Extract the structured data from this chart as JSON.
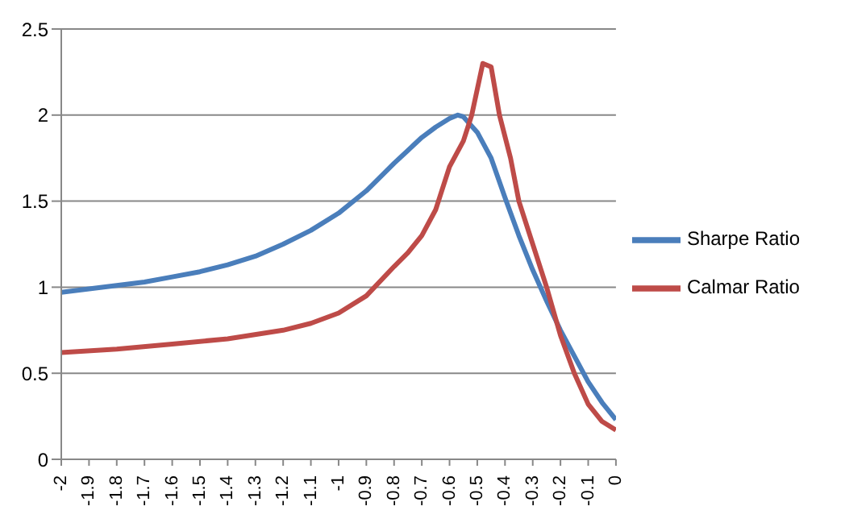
{
  "chart_data": {
    "type": "line",
    "xlim": [
      -2,
      0
    ],
    "xticks": [
      -2,
      -1.9,
      -1.8,
      -1.7,
      -1.6,
      -1.5,
      -1.4,
      -1.3,
      -1.2,
      -1.1,
      -1,
      -0.9,
      -0.8,
      -0.7,
      -0.6,
      -0.5,
      -0.4,
      -0.3,
      -0.2,
      -0.1,
      0
    ],
    "ylim": [
      0,
      2.5
    ],
    "yticks": [
      0,
      0.5,
      1,
      1.5,
      2,
      2.5
    ],
    "grid": "y",
    "legend": "right",
    "marker": "none",
    "line_style": "solid",
    "series": [
      {
        "name": "Sharpe Ratio",
        "color": "#4a7ebb",
        "x": [
          -2,
          -1.9,
          -1.8,
          -1.7,
          -1.6,
          -1.5,
          -1.4,
          -1.3,
          -1.2,
          -1.1,
          -1,
          -0.9,
          -0.8,
          -0.7,
          -0.65,
          -0.6,
          -0.57,
          -0.55,
          -0.5,
          -0.45,
          -0.4,
          -0.35,
          -0.3,
          -0.25,
          -0.2,
          -0.15,
          -0.1,
          -0.05,
          0
        ],
        "values": [
          0.97,
          0.99,
          1.01,
          1.03,
          1.06,
          1.09,
          1.13,
          1.18,
          1.25,
          1.33,
          1.43,
          1.56,
          1.72,
          1.87,
          1.93,
          1.98,
          2.0,
          1.99,
          1.9,
          1.75,
          1.52,
          1.3,
          1.1,
          0.92,
          0.75,
          0.6,
          0.45,
          0.33,
          0.23
        ]
      },
      {
        "name": "Calmar Ratio",
        "color": "#be4b48",
        "x": [
          -2,
          -1.8,
          -1.6,
          -1.4,
          -1.2,
          -1.1,
          -1,
          -0.9,
          -0.8,
          -0.75,
          -0.7,
          -0.65,
          -0.6,
          -0.55,
          -0.52,
          -0.48,
          -0.45,
          -0.42,
          -0.38,
          -0.35,
          -0.3,
          -0.25,
          -0.2,
          -0.15,
          -0.1,
          -0.05,
          0
        ],
        "values": [
          0.62,
          0.64,
          0.67,
          0.7,
          0.75,
          0.79,
          0.85,
          0.95,
          1.12,
          1.2,
          1.3,
          1.45,
          1.7,
          1.85,
          2.0,
          2.3,
          2.28,
          2.0,
          1.75,
          1.5,
          1.25,
          1.0,
          0.72,
          0.5,
          0.32,
          0.22,
          0.17
        ]
      }
    ]
  }
}
